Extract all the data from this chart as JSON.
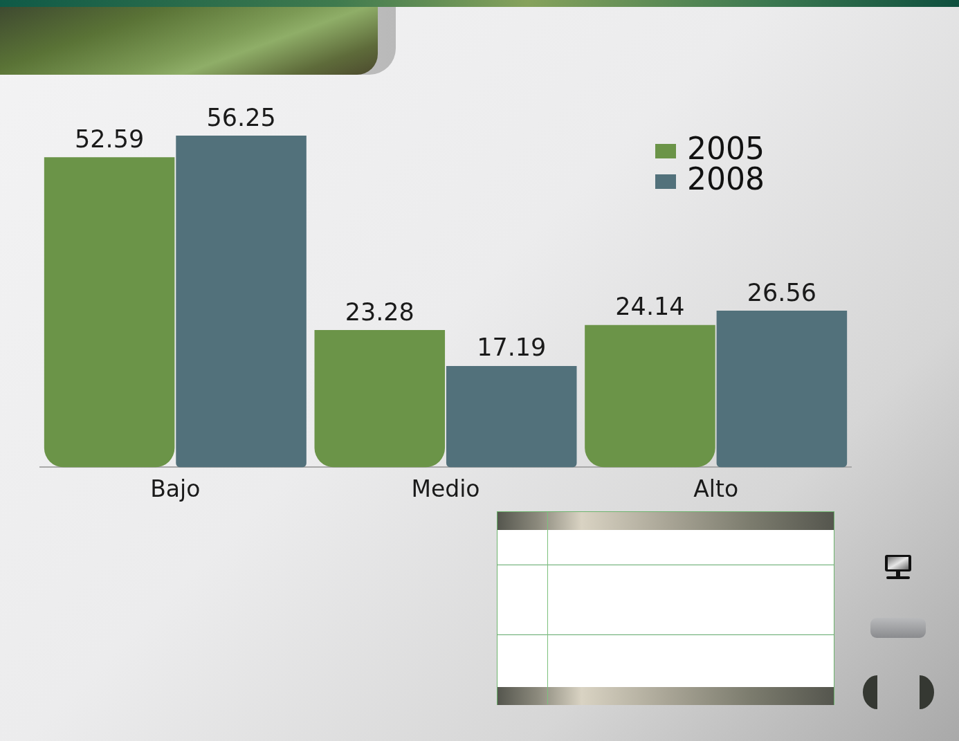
{
  "chart_data": {
    "type": "bar",
    "categories": [
      "Bajo",
      "Medio",
      "Alto"
    ],
    "series": [
      {
        "name": "2005",
        "color": "#6b9448",
        "values": [
          52.59,
          23.28,
          24.14
        ]
      },
      {
        "name": "2008",
        "color": "#52717b",
        "values": [
          56.25,
          17.19,
          26.56
        ]
      }
    ],
    "data_labels": true,
    "legend": "top right"
  }
}
